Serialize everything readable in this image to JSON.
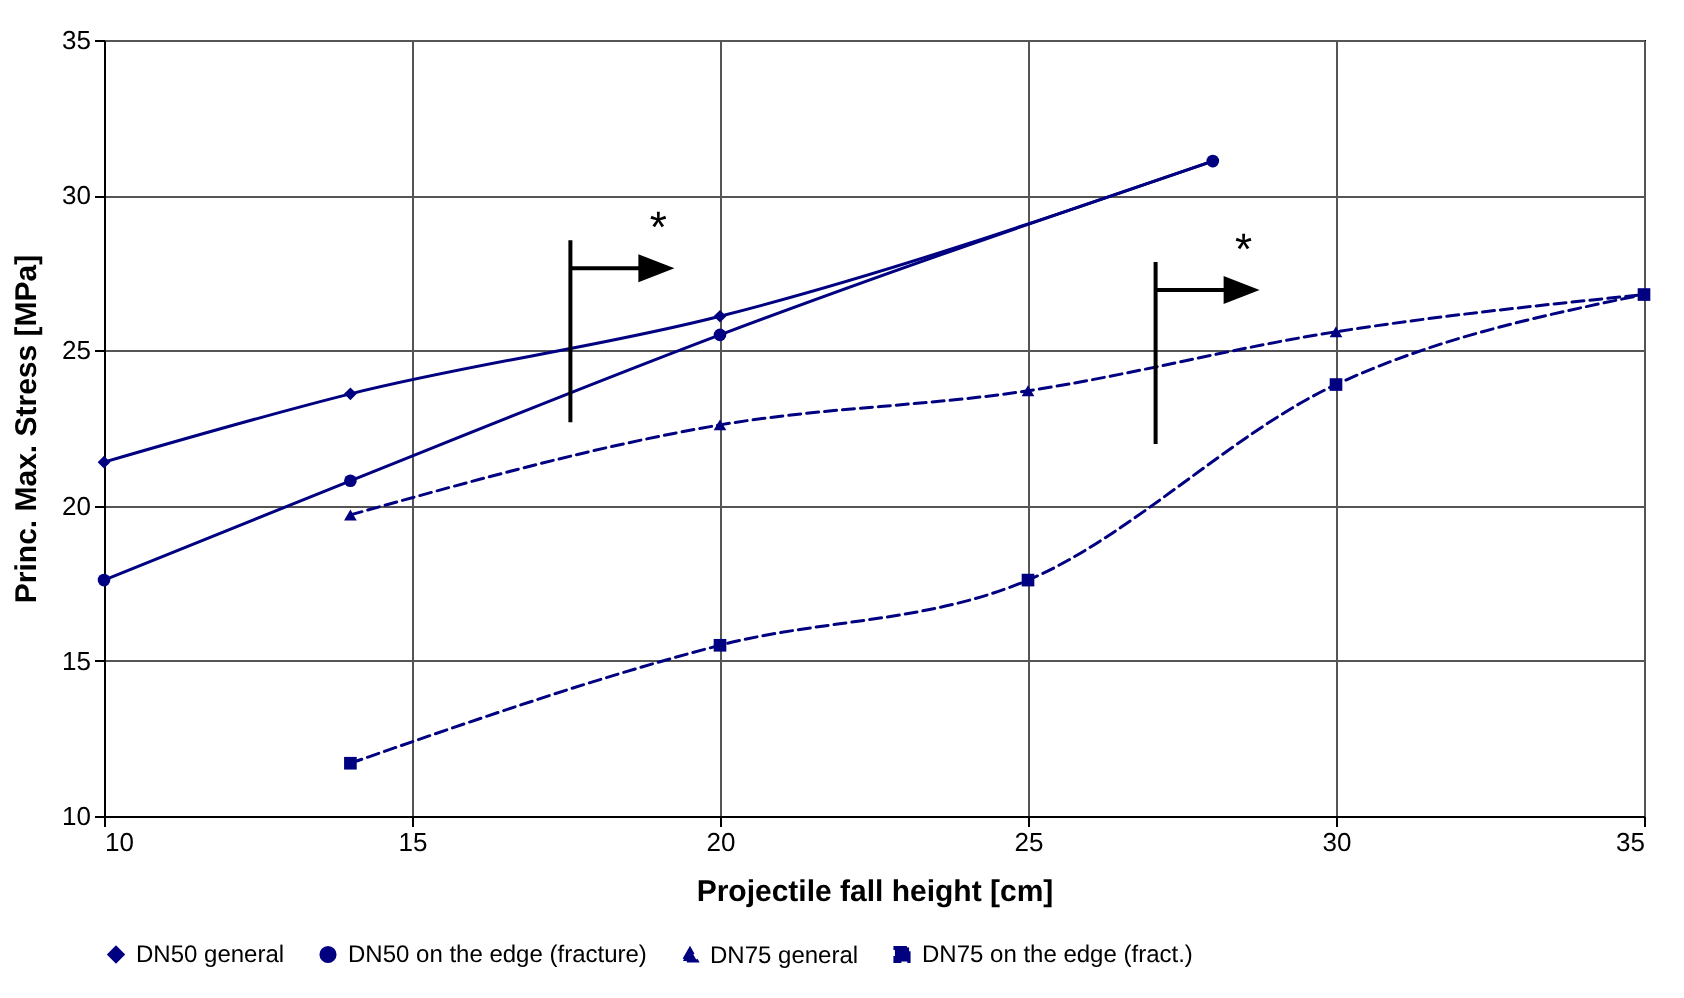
{
  "chart_data": {
    "type": "line",
    "xlabel": "Projectile fall height [cm]",
    "ylabel": "Princ. Max. Stress [MPa]",
    "xlim": [
      10,
      35
    ],
    "xticks": [
      10,
      15,
      20,
      25,
      30,
      35
    ],
    "ylim": [
      10,
      35
    ],
    "yticks": [
      10,
      15,
      20,
      25,
      30,
      35
    ],
    "grid": true,
    "legend": "bottom",
    "series": [
      {
        "name": "DN50 general",
        "color": "#000080",
        "marker": "diamond",
        "line_style": "solid",
        "x": [
          10,
          14,
          20,
          28
        ],
        "values": [
          21.4,
          23.6,
          26.1,
          31.1
        ]
      },
      {
        "name": "DN50 on the edge (fracture)",
        "color": "#000080",
        "marker": "circle",
        "line_style": "solid",
        "x": [
          10,
          14,
          20,
          28
        ],
        "values": [
          17.6,
          20.8,
          25.5,
          31.1
        ]
      },
      {
        "name": "DN75 general",
        "color": "#000080",
        "marker": "triangle",
        "line_style": "dashed",
        "x": [
          14,
          20,
          25,
          30,
          35
        ],
        "values": [
          19.7,
          22.6,
          23.7,
          25.6,
          26.8
        ]
      },
      {
        "name": "DN75 on the edge (fract.)",
        "color": "#000080",
        "marker": "square",
        "line_style": "dashed",
        "x": [
          14,
          20,
          25,
          30,
          35
        ],
        "values": [
          11.7,
          15.5,
          17.6,
          23.9,
          26.8
        ]
      }
    ],
    "annotations": [
      "*",
      "*"
    ]
  }
}
